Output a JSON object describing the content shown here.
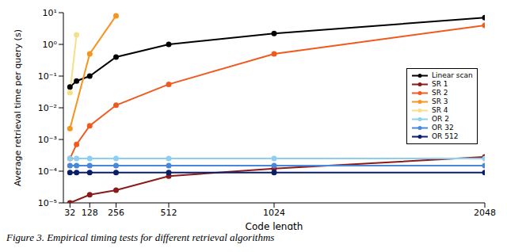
{
  "chart_data": {
    "type": "line",
    "caption": "Figure 3. Empirical timing tests for different retrieval algorithms",
    "x_label": "Code length",
    "y_label": "Average retrieval time per query (s)",
    "log": "y",
    "grid": false,
    "legend": "right",
    "marker": "o",
    "x": [
      32,
      64,
      128,
      256,
      512,
      1024,
      2048
    ],
    "xlim": [
      0,
      2048
    ],
    "xticks": [
      32,
      128,
      256,
      512,
      1024,
      2048
    ],
    "ylim": [
      1e-05,
      10
    ],
    "yticks": [
      {
        "value": 1e-05,
        "label": "10⁻⁵"
      },
      {
        "value": 0.0001,
        "label": "10⁻⁴"
      },
      {
        "value": 0.001,
        "label": "10⁻³"
      },
      {
        "value": 0.01,
        "label": "10⁻²"
      },
      {
        "value": 0.1,
        "label": "10⁻¹"
      },
      {
        "value": 1,
        "label": "10⁰"
      },
      {
        "value": 10,
        "label": "10¹"
      }
    ],
    "series": [
      {
        "name": "Linear scan",
        "color": "#000000",
        "values": [
          0.045,
          0.07,
          0.1,
          0.4,
          1.0,
          2.2,
          7
        ]
      },
      {
        "name": "SR 1",
        "color": "#8b1a1a",
        "values": [
          1e-05,
          null,
          1.8e-05,
          2.5e-05,
          7e-05,
          0.00012,
          0.00028
        ]
      },
      {
        "name": "SR 2",
        "color": "#f05a1e",
        "values": [
          0.00025,
          0.0007,
          0.0027,
          0.012,
          0.055,
          0.5,
          4
        ]
      },
      {
        "name": "SR 3",
        "color": "#f7941d",
        "values": [
          0.0022,
          null,
          0.5,
          8,
          null,
          null,
          null
        ]
      },
      {
        "name": "SR 4",
        "color": "#f5e08a",
        "values": [
          0.03,
          2,
          null,
          null,
          null,
          null,
          null
        ]
      },
      {
        "name": "OR 2",
        "color": "#8ccff0",
        "values": [
          0.00025,
          0.00025,
          0.00025,
          0.00025,
          0.00025,
          0.00025,
          0.00025
        ]
      },
      {
        "name": "OR 32",
        "color": "#4a86d9",
        "values": [
          0.00015,
          0.00015,
          0.00015,
          0.00015,
          0.00015,
          0.00015,
          0.00015
        ]
      },
      {
        "name": "OR 512",
        "color": "#0a1f6b",
        "values": [
          9e-05,
          9e-05,
          9e-05,
          9e-05,
          9e-05,
          9e-05,
          9e-05
        ]
      }
    ]
  }
}
